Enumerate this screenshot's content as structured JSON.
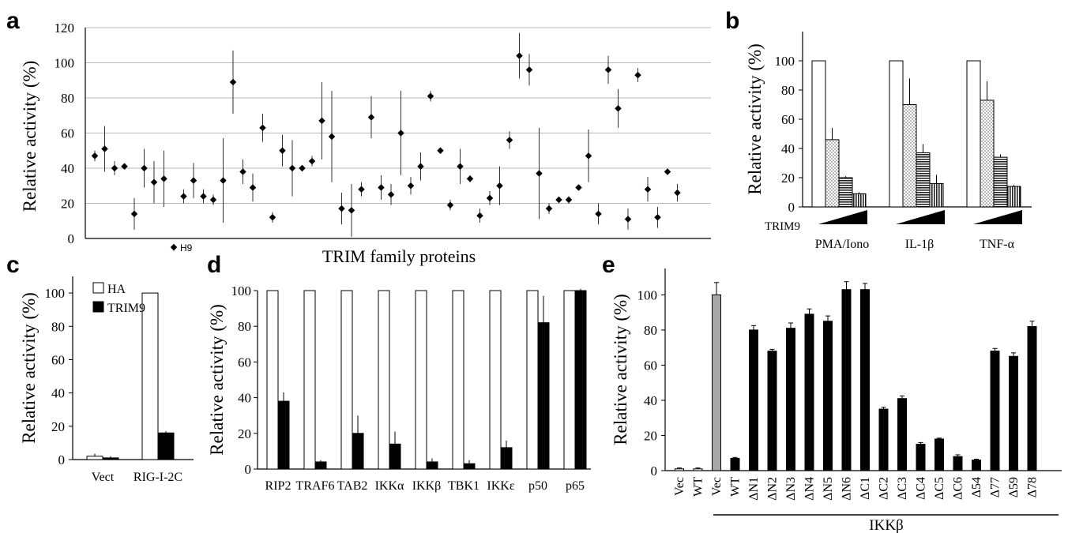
{
  "chart_data": [
    {
      "panel": "a",
      "type": "scatter",
      "ylabel": "Relative activity (%)",
      "xlabel": "TRIM family proteins",
      "ylim": [
        0,
        120
      ],
      "yticks": [
        0,
        20,
        40,
        60,
        80,
        100,
        120
      ],
      "grid": true,
      "annotation": "H9",
      "x": [
        1,
        2,
        3,
        4,
        5,
        6,
        7,
        8,
        9,
        10,
        11,
        12,
        13,
        14,
        15,
        16,
        17,
        18,
        19,
        20,
        21,
        22,
        23,
        24,
        25,
        26,
        27,
        28,
        29,
        30,
        31,
        32,
        33,
        34,
        35,
        36,
        37,
        38,
        39,
        40,
        41,
        42,
        43,
        44,
        45,
        46,
        47,
        48,
        49,
        50,
        51,
        52,
        53,
        54,
        55,
        56,
        57,
        58,
        59,
        60
      ],
      "y": [
        47,
        51,
        40,
        41,
        14,
        40,
        32,
        34,
        -5,
        24,
        33,
        24,
        22,
        33,
        89,
        38,
        29,
        63,
        12,
        50,
        40,
        40,
        44,
        67,
        58,
        17,
        16,
        28,
        69,
        29,
        25,
        60,
        30,
        41,
        81,
        50,
        19,
        41,
        34,
        13,
        23,
        30,
        56,
        104,
        96,
        37,
        17,
        22,
        22,
        29,
        47,
        14,
        96,
        74,
        11,
        93,
        28,
        12,
        38,
        26
      ],
      "err": [
        3,
        13,
        4,
        0,
        9,
        11,
        12,
        16,
        2,
        4,
        10,
        4,
        3,
        24,
        18,
        7,
        8,
        8,
        3,
        9,
        16,
        0,
        3,
        22,
        26,
        9,
        15,
        4,
        12,
        7,
        6,
        24,
        5,
        8,
        3,
        0,
        3,
        10,
        2,
        4,
        4,
        11,
        5,
        13,
        9,
        26,
        3,
        0,
        2,
        0,
        15,
        6,
        8,
        11,
        6,
        4,
        7,
        6,
        0,
        5
      ]
    },
    {
      "panel": "b",
      "type": "bar",
      "ylabel": "Relative activity (%)",
      "ylim": [
        0,
        120
      ],
      "yticks": [
        0,
        20,
        40,
        60,
        80,
        100
      ],
      "row_label": "TRIM9",
      "categories": [
        "PMA/Iono",
        "IL-1β",
        "TNF-α"
      ],
      "series": [
        {
          "values": [
            100,
            100,
            100
          ],
          "err": [
            0,
            0,
            0
          ]
        },
        {
          "values": [
            46,
            70,
            73
          ],
          "err": [
            8,
            18,
            13
          ]
        },
        {
          "values": [
            20,
            37,
            34
          ],
          "err": [
            1,
            6,
            2
          ]
        },
        {
          "values": [
            9,
            16,
            14
          ],
          "err": [
            1,
            6,
            1
          ]
        }
      ]
    },
    {
      "panel": "c",
      "type": "bar",
      "ylabel": "Relative activity (%)",
      "ylim": [
        0,
        110
      ],
      "yticks": [
        0,
        20,
        40,
        60,
        80,
        100
      ],
      "categories": [
        "Vect",
        "RIG-I-2C"
      ],
      "series": [
        {
          "name": "HA",
          "values": [
            2,
            100
          ],
          "err": [
            1.5,
            0
          ]
        },
        {
          "name": "TRIM9",
          "values": [
            1,
            16
          ],
          "err": [
            1,
            1
          ]
        }
      ]
    },
    {
      "panel": "d",
      "type": "bar",
      "ylabel": "Relative activity (%)",
      "ylim": [
        0,
        100
      ],
      "yticks": [
        0,
        20,
        40,
        60,
        80,
        100
      ],
      "categories": [
        "RIP2",
        "TRAF6",
        "TAB2",
        "IKKα",
        "IKKβ",
        "TBK1",
        "IKKε",
        "p50",
        "p65"
      ],
      "series": [
        {
          "values": [
            100,
            100,
            100,
            100,
            100,
            100,
            100,
            100,
            100
          ],
          "err": [
            0,
            0,
            0,
            0,
            0,
            0,
            0,
            0,
            0
          ]
        },
        {
          "values": [
            38,
            4,
            20,
            14,
            4,
            3,
            12,
            82,
            100
          ],
          "err": [
            5,
            1,
            10,
            7,
            2,
            2,
            4,
            15,
            1
          ]
        }
      ]
    },
    {
      "panel": "e",
      "type": "bar",
      "ylabel": "Relative activity (%)",
      "ylim": [
        0,
        115
      ],
      "yticks": [
        0,
        20,
        40,
        60,
        80,
        100
      ],
      "group_label": "IKKβ",
      "categories": [
        "Vec",
        "WT",
        "Vec",
        "WT",
        "ΔN1",
        "ΔN2",
        "ΔN3",
        "ΔN4",
        "ΔN5",
        "ΔN6",
        "ΔC1",
        "ΔC2",
        "ΔC3",
        "ΔC4",
        "ΔC5",
        "ΔC6",
        "Δ54",
        "Δ77",
        "Δ59",
        "Δ78"
      ],
      "values": [
        1,
        1,
        100,
        7,
        80,
        68,
        81,
        89,
        85,
        103,
        103,
        35,
        41,
        15,
        18,
        8,
        6,
        68,
        65,
        82
      ],
      "err": [
        0.5,
        0.5,
        7,
        0.5,
        2.5,
        1,
        3,
        3,
        3,
        4.5,
        3.5,
        1,
        1.5,
        1,
        0.5,
        1,
        0.5,
        1.5,
        2,
        3
      ],
      "colors": [
        "#ffffff",
        "#ffffff",
        "#a8a8a8",
        "#000000",
        "#000000",
        "#000000",
        "#000000",
        "#000000",
        "#000000",
        "#000000",
        "#000000",
        "#000000",
        "#000000",
        "#000000",
        "#000000",
        "#000000",
        "#000000",
        "#000000",
        "#000000",
        "#000000"
      ]
    }
  ]
}
